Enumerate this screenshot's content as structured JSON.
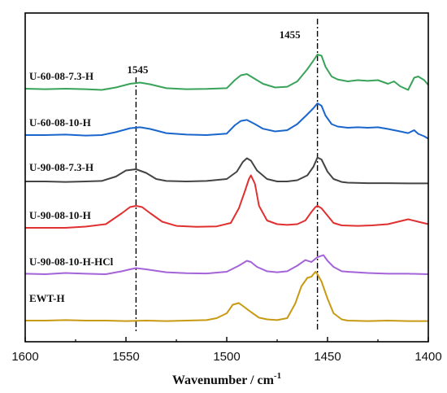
{
  "chart_data": {
    "type": "line",
    "xlabel": "Wavenumber / cm",
    "xlabel_superscript": "-1",
    "xlim": [
      1600,
      1400
    ],
    "x_reversed": true,
    "xticks": [
      1600,
      1550,
      1500,
      1450,
      1400
    ],
    "xtick_labels": [
      "1600",
      "1550",
      "1500",
      "1450",
      "1400"
    ],
    "y_axis_shown": false,
    "grid": false,
    "reference_lines": [
      {
        "x": 1545,
        "label": "1545",
        "style": "dash-dot"
      },
      {
        "x": 1455,
        "label": "1455",
        "style": "dash-dot"
      }
    ],
    "series": [
      {
        "name": "U-60-08-7.3-H",
        "color": "#3aa35a",
        "offset": 5,
        "x": [
          1600,
          1590,
          1580,
          1570,
          1562,
          1555,
          1548,
          1543,
          1538,
          1530,
          1520,
          1510,
          1500,
          1496,
          1493,
          1490,
          1486,
          1482,
          1476,
          1470,
          1465,
          1460,
          1457,
          1455,
          1453,
          1451,
          1448,
          1445,
          1440,
          1435,
          1430,
          1425,
          1420,
          1417,
          1414,
          1410,
          1407,
          1405,
          1402,
          1400
        ],
        "y": [
          0.1,
          0.08,
          0.1,
          0.08,
          0.05,
          0.15,
          0.3,
          0.35,
          0.28,
          0.12,
          0.08,
          0.09,
          0.12,
          0.45,
          0.65,
          0.7,
          0.5,
          0.3,
          0.15,
          0.18,
          0.4,
          0.9,
          1.25,
          1.5,
          1.45,
          1.0,
          0.6,
          0.48,
          0.4,
          0.45,
          0.42,
          0.45,
          0.3,
          0.4,
          0.2,
          0.05,
          0.55,
          0.6,
          0.45,
          0.25
        ]
      },
      {
        "name": "U-60-08-10-H",
        "color": "#1a66cc",
        "offset": 4,
        "x": [
          1600,
          1590,
          1580,
          1570,
          1562,
          1555,
          1548,
          1543,
          1538,
          1530,
          1520,
          1510,
          1500,
          1496,
          1493,
          1490,
          1486,
          1482,
          1476,
          1470,
          1465,
          1460,
          1457,
          1455,
          1453,
          1451,
          1448,
          1445,
          1440,
          1435,
          1430,
          1425,
          1420,
          1417,
          1414,
          1410,
          1407,
          1405,
          1402,
          1400
        ],
        "y": [
          0.1,
          0.1,
          0.12,
          0.08,
          0.1,
          0.22,
          0.38,
          0.42,
          0.35,
          0.18,
          0.12,
          0.1,
          0.16,
          0.5,
          0.68,
          0.72,
          0.55,
          0.36,
          0.25,
          0.3,
          0.55,
          0.95,
          1.2,
          1.4,
          1.3,
          0.9,
          0.55,
          0.45,
          0.4,
          0.42,
          0.4,
          0.42,
          0.35,
          0.3,
          0.25,
          0.18,
          0.3,
          0.15,
          0.05,
          -0.05
        ]
      },
      {
        "name": "U-90-08-7.3-H",
        "color": "#444444",
        "offset": 3,
        "x": [
          1600,
          1590,
          1580,
          1570,
          1562,
          1555,
          1550,
          1545,
          1540,
          1535,
          1530,
          1520,
          1510,
          1500,
          1495,
          1492,
          1490,
          1488,
          1485,
          1480,
          1475,
          1470,
          1465,
          1460,
          1457,
          1455,
          1453,
          1450,
          1447,
          1443,
          1440,
          1430,
          1420,
          1410,
          1400
        ],
        "y": [
          0.1,
          0.1,
          0.08,
          0.1,
          0.12,
          0.3,
          0.55,
          0.6,
          0.45,
          0.2,
          0.12,
          0.1,
          0.12,
          0.2,
          0.5,
          0.9,
          1.05,
          0.95,
          0.55,
          0.2,
          0.1,
          0.1,
          0.15,
          0.35,
          0.7,
          1.08,
          1.0,
          0.5,
          0.2,
          0.08,
          0.05,
          0.03,
          0.03,
          0.02,
          0.02
        ]
      },
      {
        "name": "U-90-08-10-H",
        "color": "#e03030",
        "offset": 2,
        "x": [
          1600,
          1590,
          1580,
          1570,
          1560,
          1552,
          1548,
          1545,
          1542,
          1538,
          1532,
          1525,
          1515,
          1505,
          1498,
          1494,
          1491,
          1489,
          1488,
          1486,
          1484,
          1480,
          1475,
          1470,
          1465,
          1461,
          1458,
          1456,
          1455,
          1453,
          1450,
          1447,
          1443,
          1435,
          1428,
          1420,
          1415,
          1410,
          1405,
          1400
        ],
        "y": [
          0.1,
          0.1,
          0.1,
          0.15,
          0.25,
          0.7,
          0.95,
          1.0,
          0.95,
          0.7,
          0.35,
          0.18,
          0.14,
          0.16,
          0.3,
          0.9,
          1.6,
          2.1,
          2.25,
          1.9,
          1.0,
          0.4,
          0.25,
          0.22,
          0.25,
          0.4,
          0.75,
          0.95,
          1.0,
          0.9,
          0.6,
          0.3,
          0.2,
          0.18,
          0.2,
          0.25,
          0.35,
          0.45,
          0.35,
          0.25
        ]
      },
      {
        "name": "U-90-08-10-H-HCl",
        "color": "#a464d8",
        "offset": 1,
        "x": [
          1600,
          1590,
          1580,
          1570,
          1560,
          1552,
          1548,
          1545,
          1540,
          1530,
          1520,
          1510,
          1500,
          1494,
          1490,
          1488,
          1485,
          1480,
          1475,
          1470,
          1465,
          1461,
          1458,
          1455,
          1452,
          1450,
          1447,
          1443,
          1440,
          1430,
          1420,
          1410,
          1400
        ],
        "y": [
          0.12,
          0.1,
          0.15,
          0.12,
          0.1,
          0.22,
          0.3,
          0.35,
          0.3,
          0.18,
          0.14,
          0.13,
          0.2,
          0.45,
          0.65,
          0.6,
          0.4,
          0.22,
          0.18,
          0.22,
          0.45,
          0.68,
          0.6,
          0.8,
          0.88,
          0.65,
          0.4,
          0.22,
          0.2,
          0.15,
          0.12,
          0.12,
          0.1
        ]
      },
      {
        "name": "EWT-H",
        "color": "#c89a14",
        "offset": 0,
        "x": [
          1600,
          1590,
          1580,
          1570,
          1560,
          1550,
          1540,
          1530,
          1520,
          1510,
          1505,
          1500,
          1497,
          1494,
          1492,
          1488,
          1484,
          1480,
          1475,
          1470,
          1466,
          1463,
          1460,
          1458,
          1456,
          1455,
          1453,
          1450,
          1447,
          1443,
          1440,
          1430,
          1420,
          1410,
          1400
        ],
        "y": [
          0.1,
          0.1,
          0.12,
          0.1,
          0.1,
          0.08,
          0.1,
          0.08,
          0.1,
          0.12,
          0.2,
          0.4,
          0.75,
          0.82,
          0.7,
          0.45,
          0.22,
          0.15,
          0.12,
          0.2,
          0.8,
          1.5,
          1.85,
          1.9,
          2.1,
          2.0,
          1.7,
          1.0,
          0.4,
          0.15,
          0.1,
          0.08,
          0.1,
          0.08,
          0.08
        ]
      }
    ]
  }
}
